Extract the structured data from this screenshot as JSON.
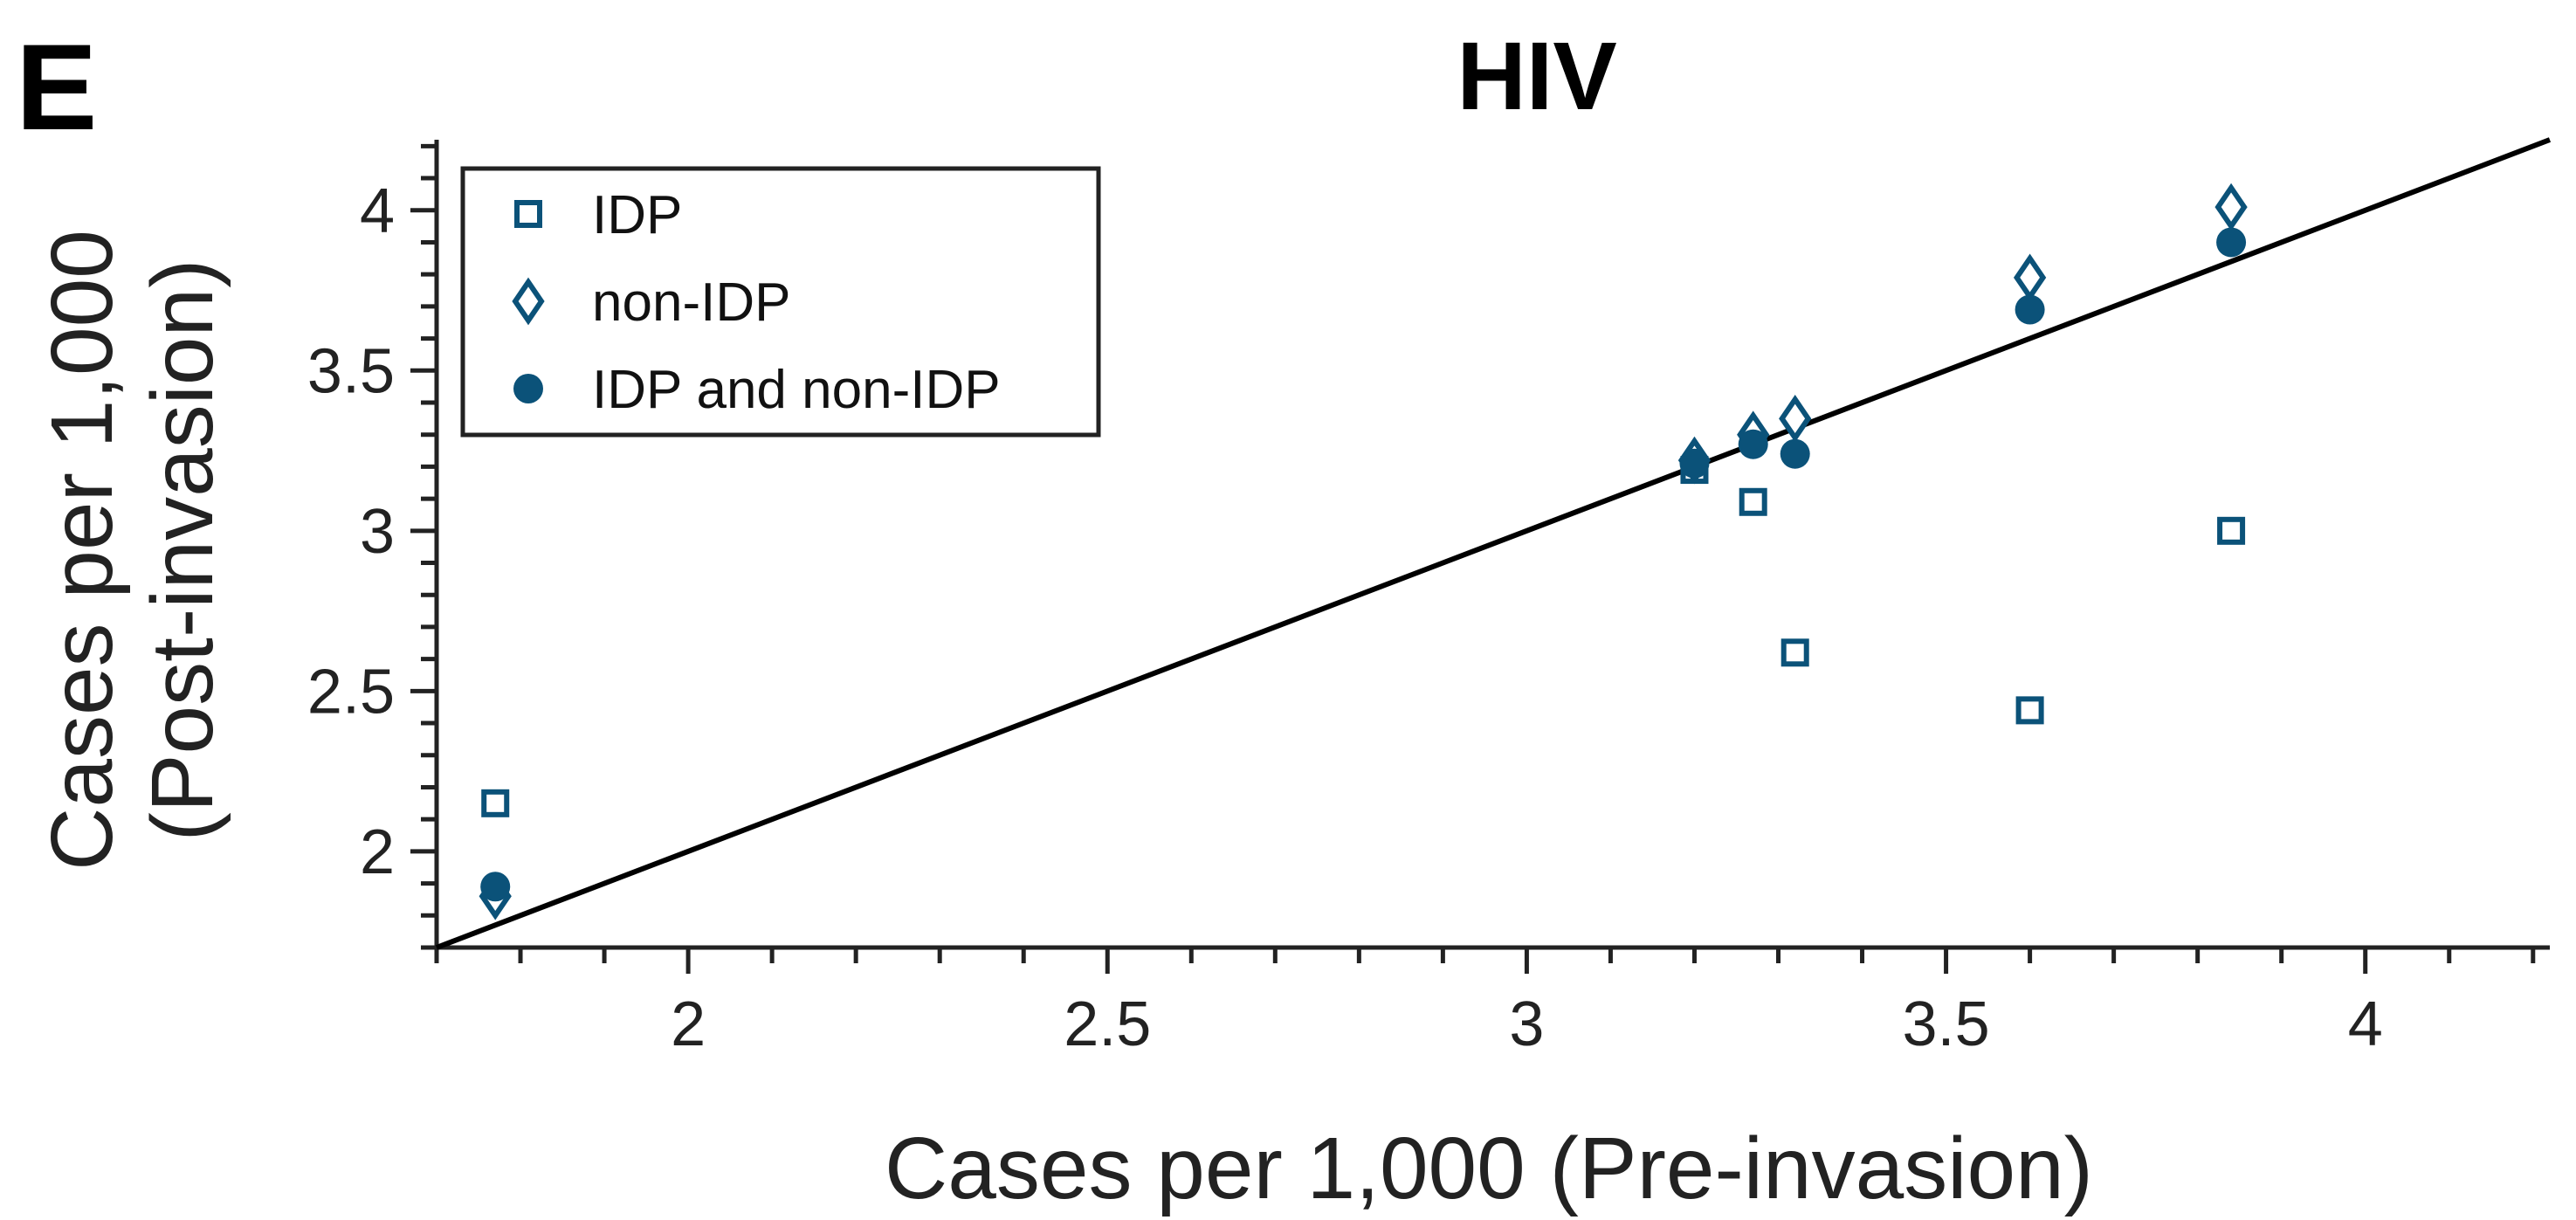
{
  "panel_label": "E",
  "chart_data": {
    "type": "scatter",
    "title": "HIV",
    "xlabel": "Cases per 1,000 (Pre-invasion)",
    "ylabel_lines": [
      "Cases per 1,000",
      "(Post-invasion)"
    ],
    "xlim": [
      1.7,
      4.22
    ],
    "ylim": [
      1.7,
      4.22
    ],
    "x_ticks": [
      2,
      2.5,
      3,
      3.5,
      4
    ],
    "x_tick_labels": [
      "2",
      "2.5",
      "3",
      "3.5",
      "4"
    ],
    "y_ticks": [
      2,
      2.5,
      3,
      3.5,
      4
    ],
    "y_tick_labels": [
      "2",
      "2.5",
      "3",
      "3.5",
      "4"
    ],
    "minor_step": 0.1,
    "reference_line": "y = x",
    "legend_position": "upper-left",
    "grid": false,
    "series": [
      {
        "name": "IDP",
        "marker": "square-open",
        "color": "#0b5279",
        "points": [
          {
            "x": 1.77,
            "y": 2.15
          },
          {
            "x": 3.2,
            "y": 3.19
          },
          {
            "x": 3.27,
            "y": 3.09
          },
          {
            "x": 3.32,
            "y": 2.62
          },
          {
            "x": 3.6,
            "y": 2.44
          },
          {
            "x": 3.84,
            "y": 3.0
          }
        ]
      },
      {
        "name": "non-IDP",
        "marker": "diamond-open",
        "color": "#0b5279",
        "points": [
          {
            "x": 1.77,
            "y": 1.86
          },
          {
            "x": 3.2,
            "y": 3.22
          },
          {
            "x": 3.27,
            "y": 3.3
          },
          {
            "x": 3.32,
            "y": 3.35
          },
          {
            "x": 3.6,
            "y": 3.79
          },
          {
            "x": 3.84,
            "y": 4.01
          }
        ]
      },
      {
        "name": "IDP and non-IDP",
        "marker": "circle-filled",
        "color": "#0b5279",
        "points": [
          {
            "x": 1.77,
            "y": 1.89
          },
          {
            "x": 3.2,
            "y": 3.21
          },
          {
            "x": 3.27,
            "y": 3.27
          },
          {
            "x": 3.32,
            "y": 3.24
          },
          {
            "x": 3.6,
            "y": 3.69
          },
          {
            "x": 3.84,
            "y": 3.9
          }
        ]
      }
    ]
  }
}
